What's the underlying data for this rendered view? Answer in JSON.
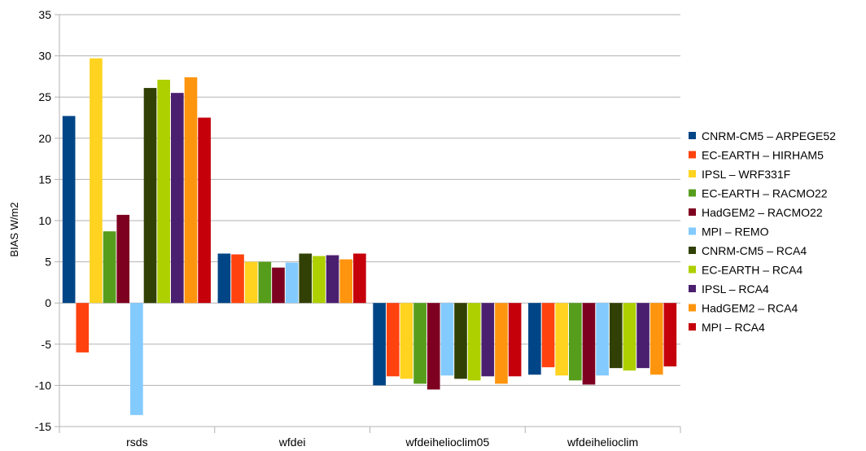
{
  "chart_data": {
    "type": "bar",
    "title": "",
    "xlabel": "",
    "ylabel": "BIAS W/m2",
    "ylim": [
      -15,
      35
    ],
    "yticks": [
      35,
      30,
      25,
      20,
      15,
      10,
      5,
      0,
      -5,
      -10,
      -15
    ],
    "grid": true,
    "legend_position": "right",
    "categories": [
      "rsds",
      "wfdei",
      "wfdeihelioclim05",
      "wfdeihelioclim"
    ],
    "series": [
      {
        "name": "CNRM-CM5 – ARPEGE52",
        "color": "#004586",
        "values": [
          22.7,
          6.0,
          -10.0,
          -8.7
        ]
      },
      {
        "name": "EC-EARTH – HIRHAM5",
        "color": "#ff420e",
        "values": [
          -6.0,
          5.9,
          -8.9,
          -7.8
        ]
      },
      {
        "name": "IPSL – WRF331F",
        "color": "#ffd320",
        "values": [
          29.7,
          5.0,
          -9.2,
          -8.8
        ]
      },
      {
        "name": "EC-EARTH – RACMO22",
        "color": "#579d1c",
        "values": [
          8.7,
          5.0,
          -9.8,
          -9.4
        ]
      },
      {
        "name": "HadGEM2 – RACMO22",
        "color": "#7e0021",
        "values": [
          10.7,
          4.3,
          -10.5,
          -9.9
        ]
      },
      {
        "name": "MPI – REMO",
        "color": "#83caff",
        "values": [
          -13.6,
          4.9,
          -8.8,
          -8.8
        ]
      },
      {
        "name": "CNRM-CM5  – RCA4",
        "color": "#314004",
        "values": [
          26.1,
          6.0,
          -9.2,
          -7.9
        ]
      },
      {
        "name": "EC-EARTH – RCA4",
        "color": "#aecf00",
        "values": [
          27.1,
          5.7,
          -9.4,
          -8.2
        ]
      },
      {
        "name": "IPSL – RCA4",
        "color": "#4b1f6f",
        "values": [
          25.5,
          5.8,
          -8.9,
          -7.9
        ]
      },
      {
        "name": "HadGEM2 – RCA4",
        "color": "#ff950e",
        "values": [
          27.4,
          5.3,
          -9.8,
          -8.7
        ]
      },
      {
        "name": "MPI – RCA4",
        "color": "#c5000b",
        "values": [
          22.5,
          6.0,
          -8.9,
          -7.7
        ]
      }
    ]
  }
}
